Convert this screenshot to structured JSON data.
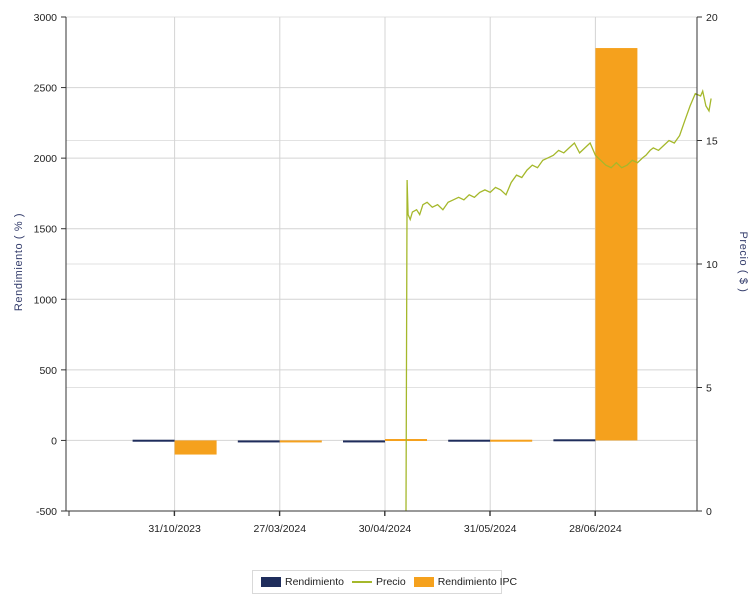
{
  "chart_data": {
    "type": "bar",
    "xlabel": "",
    "ylabel": "Rendimiento  ( % )",
    "y2label": "Precio  ( $ )",
    "ylim": [
      -500,
      3000
    ],
    "yticks": [
      -500,
      0,
      500,
      1000,
      1500,
      2000,
      2500,
      3000
    ],
    "y2lim": [
      0,
      20
    ],
    "y2ticks": [
      0,
      5,
      10,
      15,
      20
    ],
    "categories": [
      "31/10/2023",
      "27/03/2024",
      "30/04/2024",
      "31/05/2024",
      "28/06/2024"
    ],
    "series": [
      {
        "name": "Rendimiento",
        "type": "bar",
        "color": "#1f2d5c",
        "values": [
          5,
          -10,
          -12,
          5,
          8
        ]
      },
      {
        "name": "Rendimiento IPC",
        "type": "bar",
        "color": "#f5a11d",
        "values": [
          -100,
          -8,
          10,
          5,
          2780
        ]
      },
      {
        "name": "Precio",
        "type": "line",
        "axis": "y2",
        "color": "#a5b82b",
        "x": [
          3.2,
          3.21,
          3.22,
          3.24,
          3.26,
          3.3,
          3.33,
          3.36,
          3.4,
          3.45,
          3.5,
          3.55,
          3.6,
          3.65,
          3.7,
          3.75,
          3.8,
          3.85,
          3.9,
          3.95,
          4.0,
          4.05,
          4.1,
          4.15,
          4.2,
          4.25,
          4.3,
          4.35,
          4.4,
          4.45,
          4.5,
          4.55,
          4.6,
          4.65,
          4.7,
          4.75,
          4.8,
          4.85,
          4.9,
          4.95,
          5.0,
          5.05,
          5.1,
          5.15,
          5.2,
          5.25,
          5.3,
          5.35,
          5.4,
          5.45,
          5.48,
          5.52,
          5.55,
          5.6,
          5.65,
          5.7,
          5.75,
          5.8,
          5.85,
          5.9,
          5.95,
          6.0,
          6.02,
          6.05,
          6.08,
          6.1
        ],
        "values": [
          0,
          13.4,
          12.0,
          11.8,
          12.1,
          12.2,
          12.0,
          12.4,
          12.5,
          12.3,
          12.4,
          12.2,
          12.5,
          12.6,
          12.7,
          12.6,
          12.8,
          12.7,
          12.9,
          13.0,
          12.9,
          13.1,
          13.0,
          12.8,
          13.3,
          13.6,
          13.5,
          13.8,
          14.0,
          13.9,
          14.2,
          14.3,
          14.4,
          14.6,
          14.5,
          14.7,
          14.9,
          14.5,
          14.7,
          14.9,
          14.4,
          14.2,
          14.0,
          13.9,
          14.1,
          13.9,
          14.0,
          14.2,
          14.1,
          14.3,
          14.4,
          14.6,
          14.7,
          14.6,
          14.8,
          15.0,
          14.9,
          15.2,
          15.8,
          16.4,
          16.9,
          16.8,
          17.0,
          16.4,
          16.2,
          16.7
        ]
      }
    ],
    "grid": true,
    "legend": "bottom"
  }
}
